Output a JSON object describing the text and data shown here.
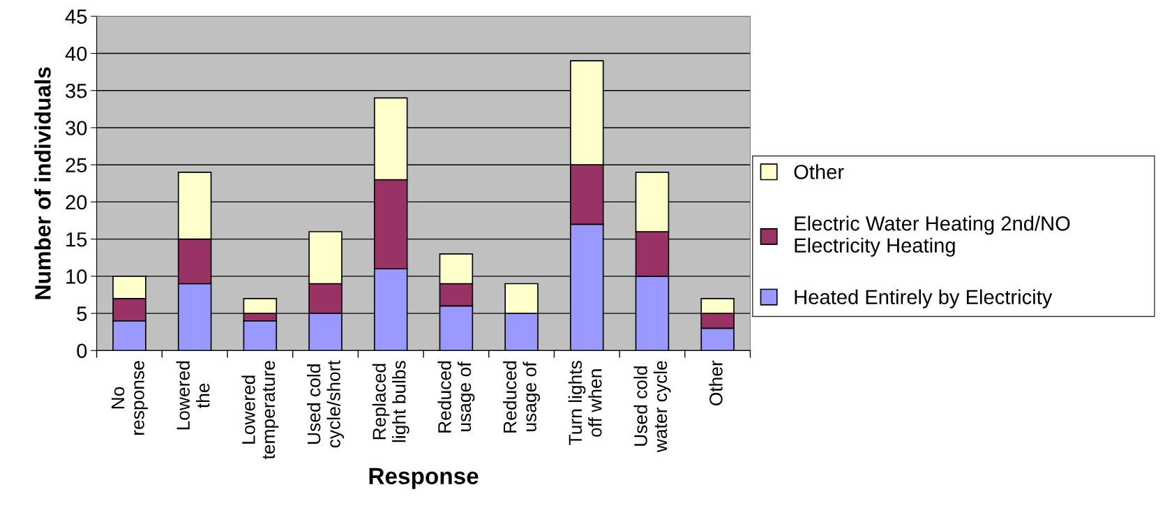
{
  "chart_data": {
    "type": "bar",
    "stacked": true,
    "xlabel": "Response",
    "ylabel": "Number of individuals",
    "categories": [
      "No\nresponse",
      "Lowered\nthe",
      "Lowered\ntemperature",
      "Used cold\ncycle/short",
      "Replaced\nlight bulbs",
      "Reduced\nusage of",
      "Reduced\nusage of",
      "Turn lights\noff when",
      "Used cold\nwater cycle",
      "Other"
    ],
    "series": [
      {
        "name": "Heated Entirely by Electricity",
        "color": "#9999ff",
        "values": [
          4,
          9,
          4,
          5,
          11,
          6,
          5,
          17,
          10,
          3
        ]
      },
      {
        "name": "Electric Water Heating 2nd/NO\nElectricity Heating",
        "color": "#993366",
        "values": [
          3,
          6,
          1,
          4,
          12,
          3,
          0,
          8,
          6,
          2
        ]
      },
      {
        "name": "Other",
        "color": "#ffffcc",
        "values": [
          3,
          9,
          2,
          7,
          11,
          4,
          4,
          14,
          8,
          2
        ]
      }
    ],
    "ylim": [
      0,
      45
    ],
    "yticks": [
      0,
      5,
      10,
      15,
      20,
      25,
      30,
      35,
      40,
      45
    ],
    "grid": "y",
    "legend": "right"
  }
}
